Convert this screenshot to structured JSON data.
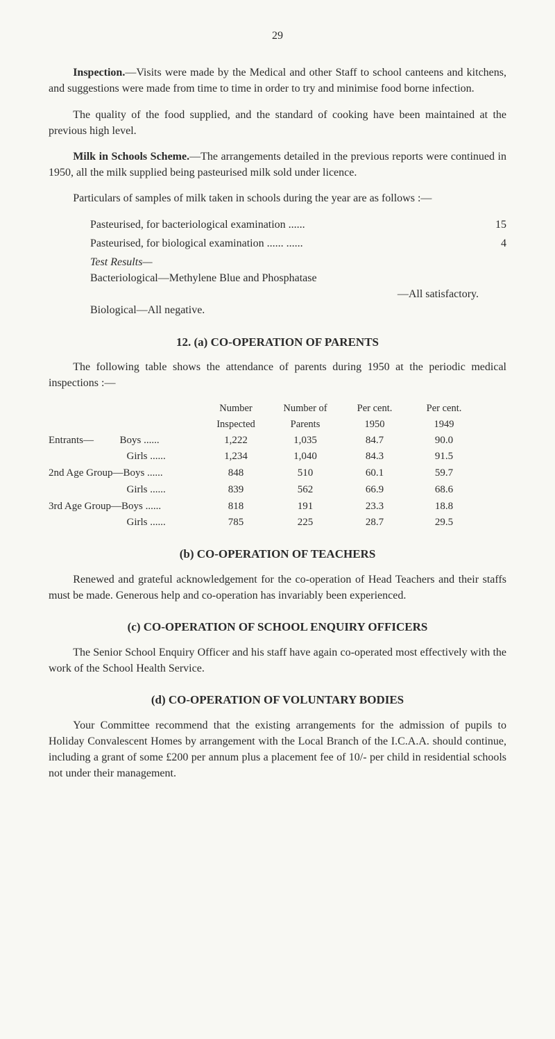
{
  "page_number": "29",
  "paragraphs": {
    "inspection_bold": "Inspection.",
    "inspection_text": "—Visits were made by the Medical and other Staff to school canteens and kitchens, and suggestions were made from time to time in order to try and minimise food borne infection.",
    "quality_text": "The quality of the food supplied, and the standard of cooking have been maintained at the previous high level.",
    "milk_bold": "Milk in Schools Scheme.",
    "milk_text": "—The arrangements detailed in the previous reports were continued in 1950, all the milk supplied being pasteurised milk sold under licence.",
    "particulars_text": "Particulars of samples of milk taken in schools during the year are as follows :—",
    "samples": [
      {
        "label": "Pasteurised, for bacteriological examination   ......",
        "value": "15"
      },
      {
        "label": "Pasteurised, for biological examination   ......   ......",
        "value": "4"
      }
    ],
    "test_results_label": "Test Results—",
    "bacteriological_text": "Bacteriological—Methylene Blue and Phosphatase",
    "all_satisfactory": "—All satisfactory.",
    "biological_text": "Biological—All negative.",
    "section_12a_title": "12.   (a)   CO-OPERATION OF PARENTS",
    "attendance_intro": "The following table shows the attendance of parents during 1950 at the periodic medical inspections :—",
    "attendance_header": {
      "col1": "Number",
      "col2": "Number of",
      "col3": "Per cent.",
      "col4": "Per cent."
    },
    "attendance_subheader": {
      "col1": "Inspected",
      "col2": "Parents",
      "col3": "1950",
      "col4": "1949"
    },
    "attendance_rows": [
      {
        "label": "Entrants—          Boys",
        "inspected": "1,222",
        "parents": "1,035",
        "pct1950": "84.7",
        "pct1949": "90.0"
      },
      {
        "label": "                              Girls",
        "inspected": "1,234",
        "parents": "1,040",
        "pct1950": "84.3",
        "pct1949": "91.5"
      },
      {
        "label": "2nd Age Group—Boys",
        "inspected": "848",
        "parents": "510",
        "pct1950": "60.1",
        "pct1949": "59.7"
      },
      {
        "label": "                              Girls",
        "inspected": "839",
        "parents": "562",
        "pct1950": "66.9",
        "pct1949": "68.6"
      },
      {
        "label": "3rd Age Group—Boys",
        "inspected": "818",
        "parents": "191",
        "pct1950": "23.3",
        "pct1949": "18.8"
      },
      {
        "label": "                              Girls",
        "inspected": "785",
        "parents": "225",
        "pct1950": "28.7",
        "pct1949": "29.5"
      }
    ],
    "section_b_title": "(b)   CO-OPERATION OF TEACHERS",
    "section_b_text": "Renewed and grateful acknowledgement for the co-operation of Head Teachers and their staffs must be made.   Generous help and co-operation has invariably been experienced.",
    "section_c_title": "(c)   CO-OPERATION OF SCHOOL ENQUIRY OFFICERS",
    "section_c_text": "The Senior School Enquiry Officer and his staff have again co-operated most effectively with the work of the School Health Service.",
    "section_d_title": "(d)   CO-OPERATION OF VOLUNTARY BODIES",
    "section_d_text": "Your Committee recommend that the existing arrangements for the admission of pupils to Holiday Convalescent Homes by arrangement with the Local Branch of the I.C.A.A. should continue, including a grant of some £200 per annum plus a placement fee of 10/- per child in residential schools not under their management."
  }
}
